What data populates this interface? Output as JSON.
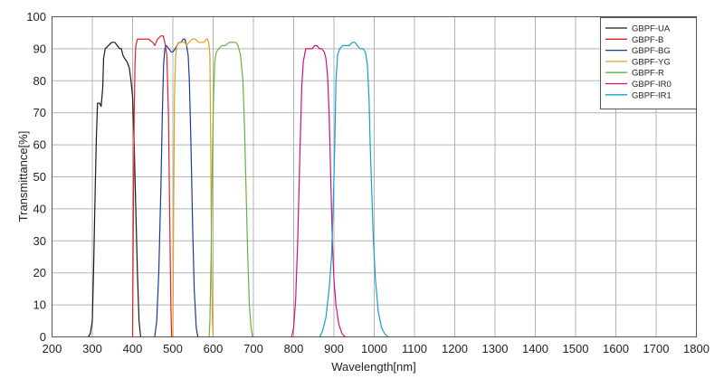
{
  "chart_data": {
    "type": "line",
    "title": "",
    "xlabel": "Wavelength[nm]",
    "ylabel": "Transmittance[%]",
    "xlim": [
      200,
      1800
    ],
    "ylim": [
      0,
      100
    ],
    "x_ticks": [
      200,
      300,
      400,
      500,
      600,
      700,
      800,
      900,
      1000,
      1100,
      1200,
      1300,
      1400,
      1500,
      1600,
      1700,
      1800
    ],
    "y_ticks": [
      0,
      10,
      20,
      30,
      40,
      50,
      60,
      70,
      80,
      90,
      100
    ],
    "grid": true,
    "legend_position": "top-right",
    "series": [
      {
        "name": "GBPF-UA",
        "color": "#1a1a1a",
        "points": [
          [
            290,
            0
          ],
          [
            295,
            1
          ],
          [
            300,
            5
          ],
          [
            303,
            20
          ],
          [
            307,
            45
          ],
          [
            310,
            62
          ],
          [
            313,
            73
          ],
          [
            318,
            73
          ],
          [
            322,
            72
          ],
          [
            326,
            78
          ],
          [
            328,
            87
          ],
          [
            332,
            90
          ],
          [
            340,
            91
          ],
          [
            348,
            92
          ],
          [
            356,
            92
          ],
          [
            362,
            91
          ],
          [
            368,
            90
          ],
          [
            372,
            90
          ],
          [
            376,
            88
          ],
          [
            380,
            87
          ],
          [
            386,
            86
          ],
          [
            392,
            84
          ],
          [
            396,
            80
          ],
          [
            400,
            75
          ],
          [
            404,
            60
          ],
          [
            408,
            40
          ],
          [
            412,
            20
          ],
          [
            416,
            5
          ],
          [
            420,
            0
          ]
        ]
      },
      {
        "name": "GBPF-B",
        "color": "#e0202a",
        "points": [
          [
            400,
            0
          ],
          [
            402,
            40
          ],
          [
            404,
            70
          ],
          [
            406,
            85
          ],
          [
            408,
            91
          ],
          [
            412,
            93
          ],
          [
            420,
            93
          ],
          [
            430,
            93
          ],
          [
            440,
            93
          ],
          [
            450,
            92
          ],
          [
            455,
            91
          ],
          [
            462,
            93
          ],
          [
            470,
            94
          ],
          [
            476,
            94
          ],
          [
            480,
            92
          ],
          [
            485,
            88
          ],
          [
            489,
            70
          ],
          [
            492,
            40
          ],
          [
            495,
            10
          ],
          [
            497,
            0
          ]
        ]
      },
      {
        "name": "GBPF-BG",
        "color": "#1a3a9c",
        "points": [
          [
            455,
            0
          ],
          [
            460,
            5
          ],
          [
            465,
            20
          ],
          [
            470,
            45
          ],
          [
            474,
            70
          ],
          [
            477,
            85
          ],
          [
            480,
            90
          ],
          [
            484,
            91
          ],
          [
            490,
            90
          ],
          [
            496,
            89
          ],
          [
            500,
            89
          ],
          [
            506,
            90
          ],
          [
            510,
            91
          ],
          [
            515,
            92
          ],
          [
            520,
            92
          ],
          [
            526,
            93
          ],
          [
            530,
            93
          ],
          [
            534,
            91
          ],
          [
            538,
            88
          ],
          [
            541,
            80
          ],
          [
            545,
            60
          ],
          [
            549,
            35
          ],
          [
            553,
            15
          ],
          [
            558,
            3
          ],
          [
            562,
            0
          ]
        ]
      },
      {
        "name": "GBPF-YG",
        "color": "#e0a020",
        "points": [
          [
            500,
            0
          ],
          [
            502,
            40
          ],
          [
            504,
            75
          ],
          [
            507,
            88
          ],
          [
            510,
            91
          ],
          [
            516,
            92
          ],
          [
            524,
            92
          ],
          [
            530,
            92
          ],
          [
            534,
            91
          ],
          [
            540,
            92
          ],
          [
            548,
            93
          ],
          [
            556,
            93
          ],
          [
            564,
            92
          ],
          [
            572,
            92
          ],
          [
            578,
            92
          ],
          [
            583,
            93
          ],
          [
            586,
            93
          ],
          [
            589,
            92
          ],
          [
            592,
            88
          ],
          [
            594,
            60
          ],
          [
            596,
            25
          ],
          [
            598,
            5
          ],
          [
            600,
            0
          ]
        ]
      },
      {
        "name": "GBPF-R",
        "color": "#6ab040",
        "points": [
          [
            590,
            0
          ],
          [
            592,
            5
          ],
          [
            595,
            25
          ],
          [
            598,
            55
          ],
          [
            601,
            75
          ],
          [
            604,
            86
          ],
          [
            608,
            89
          ],
          [
            614,
            90
          ],
          [
            622,
            91
          ],
          [
            630,
            91
          ],
          [
            640,
            92
          ],
          [
            648,
            92
          ],
          [
            656,
            92
          ],
          [
            662,
            91
          ],
          [
            668,
            88
          ],
          [
            674,
            80
          ],
          [
            678,
            65
          ],
          [
            682,
            45
          ],
          [
            686,
            25
          ],
          [
            690,
            10
          ],
          [
            694,
            3
          ],
          [
            698,
            0
          ]
        ]
      },
      {
        "name": "GBPF-IR0",
        "color": "#d0107a",
        "points": [
          [
            795,
            0
          ],
          [
            800,
            3
          ],
          [
            805,
            12
          ],
          [
            810,
            30
          ],
          [
            815,
            55
          ],
          [
            820,
            78
          ],
          [
            824,
            86
          ],
          [
            830,
            90
          ],
          [
            838,
            90
          ],
          [
            846,
            90
          ],
          [
            852,
            91
          ],
          [
            858,
            91
          ],
          [
            864,
            90
          ],
          [
            870,
            90
          ],
          [
            876,
            89
          ],
          [
            880,
            87
          ],
          [
            884,
            82
          ],
          [
            888,
            70
          ],
          [
            892,
            50
          ],
          [
            896,
            30
          ],
          [
            900,
            18
          ],
          [
            905,
            10
          ],
          [
            912,
            4
          ],
          [
            920,
            1
          ],
          [
            928,
            0
          ]
        ]
      },
      {
        "name": "GBPF-IR1",
        "color": "#10a0d0",
        "points": [
          [
            865,
            0
          ],
          [
            872,
            2
          ],
          [
            880,
            6
          ],
          [
            888,
            15
          ],
          [
            894,
            25
          ],
          [
            898,
            40
          ],
          [
            902,
            60
          ],
          [
            905,
            80
          ],
          [
            909,
            88
          ],
          [
            914,
            90
          ],
          [
            922,
            91
          ],
          [
            930,
            91
          ],
          [
            938,
            91
          ],
          [
            946,
            92
          ],
          [
            952,
            92
          ],
          [
            958,
            91
          ],
          [
            965,
            90
          ],
          [
            972,
            90
          ],
          [
            978,
            89
          ],
          [
            983,
            85
          ],
          [
            987,
            75
          ],
          [
            990,
            60
          ],
          [
            994,
            45
          ],
          [
            998,
            30
          ],
          [
            1003,
            18
          ],
          [
            1010,
            8
          ],
          [
            1018,
            3
          ],
          [
            1026,
            1
          ],
          [
            1034,
            0
          ]
        ]
      }
    ]
  }
}
